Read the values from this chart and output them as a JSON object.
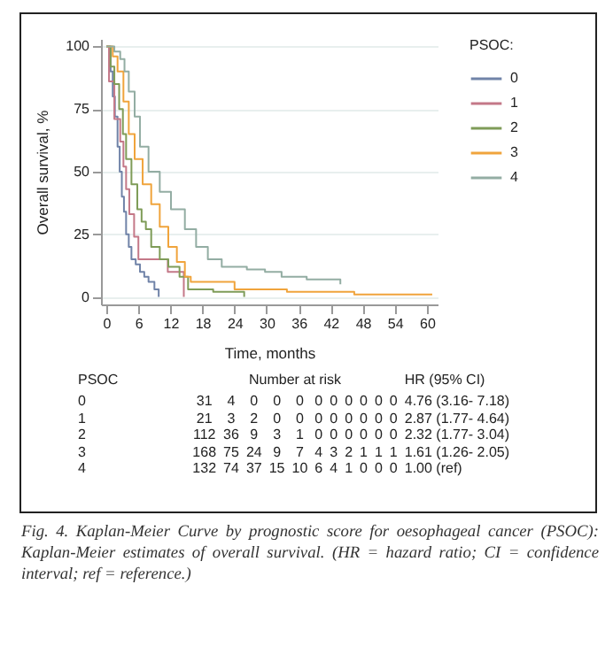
{
  "chart_data": {
    "type": "step",
    "xlabel": "Time, months",
    "ylabel": "Overall survival, %",
    "legend_title": "PSOC:",
    "legend": "right",
    "grid": "y",
    "xlim": [
      -1,
      62
    ],
    "ylim": [
      -3,
      103
    ],
    "xticks": [
      0,
      6,
      12,
      18,
      24,
      30,
      36,
      42,
      48,
      54,
      60
    ],
    "yticks": [
      0,
      25,
      50,
      75,
      100
    ],
    "series": [
      {
        "name": "0",
        "color": "#7083a8",
        "x": [
          0,
          0.8,
          1.2,
          1.6,
          2.1,
          2.5,
          2.9,
          3.3,
          3.7,
          4.2,
          4.7,
          5.5,
          6.3,
          7.1,
          7.9,
          9,
          9.8
        ],
        "values": [
          100,
          90,
          80,
          72,
          60,
          50,
          40,
          34,
          25,
          20,
          15,
          13,
          10,
          8,
          6,
          3,
          0
        ]
      },
      {
        "name": "1",
        "color": "#c47888",
        "x": [
          0,
          0.5,
          1.5,
          2.6,
          3.2,
          3.7,
          4.3,
          5.2,
          6,
          11.5,
          14.5
        ],
        "values": [
          100,
          86,
          71,
          62,
          52,
          43,
          33,
          24,
          15,
          10,
          0
        ]
      },
      {
        "name": "2",
        "color": "#7f9c58",
        "x": [
          0,
          0.8,
          1.5,
          2.4,
          3.1,
          3.7,
          4.7,
          5.8,
          6.6,
          7.4,
          8.4,
          10,
          11.6,
          13.7,
          15.3,
          20,
          25.8
        ],
        "values": [
          100,
          92,
          85,
          75,
          65,
          55,
          45,
          35,
          30,
          27,
          20,
          15,
          12,
          8,
          3,
          2,
          0
        ]
      },
      {
        "name": "3",
        "color": "#f0a43c",
        "x": [
          0,
          1.2,
          2.1,
          3.2,
          4.2,
          5.3,
          6.8,
          8.4,
          10,
          11.6,
          13.2,
          14.7,
          15.8,
          24,
          33.8,
          46.4,
          61
        ],
        "values": [
          100,
          96,
          90,
          78,
          65,
          55,
          45,
          37,
          28,
          20,
          14,
          8,
          6,
          3,
          2,
          1,
          1
        ]
      },
      {
        "name": "4",
        "color": "#93ada3",
        "x": [
          0,
          1.5,
          2.6,
          3.4,
          4.2,
          5.3,
          6.3,
          7.9,
          10,
          12.1,
          14.7,
          16.8,
          19,
          21.6,
          26.3,
          29.7,
          32.8,
          37.5,
          43.8
        ],
        "values": [
          100,
          98,
          95,
          90,
          82,
          72,
          60,
          50,
          42,
          35,
          27,
          20,
          15,
          12,
          11,
          10,
          8,
          7,
          5
        ]
      }
    ],
    "annotations": [
      "PSOC",
      "Number at risk",
      "HR (95% CI)",
      "0",
      "31 4 0 0 0 0 0 0 0 0 0",
      "4.76 (3.16- 7.18)",
      "1",
      "21 3 2 0 0 0 0 0 0 0 0",
      "2.87 (1.77- 4.64)",
      "2",
      "112 36 9 3 1 0 0 0 0 0 0",
      "2.32 (1.77- 3.04)",
      "3",
      "168 75 24 9 7 4 3 2 1 1 1",
      "1.61 (1.26- 2.05)",
      "4",
      "132 74 37 15 10 6 4 1 0 0 0",
      "1.00 (ref)",
      "Fig. 4. Kaplan-Meier Curve by prognostic score for oesophageal cancer (PSOC): Kaplan-Meier estimates of overall survival. (HR = hazard ratio; CI = confidence interval; ref = reference.)"
    ]
  }
}
